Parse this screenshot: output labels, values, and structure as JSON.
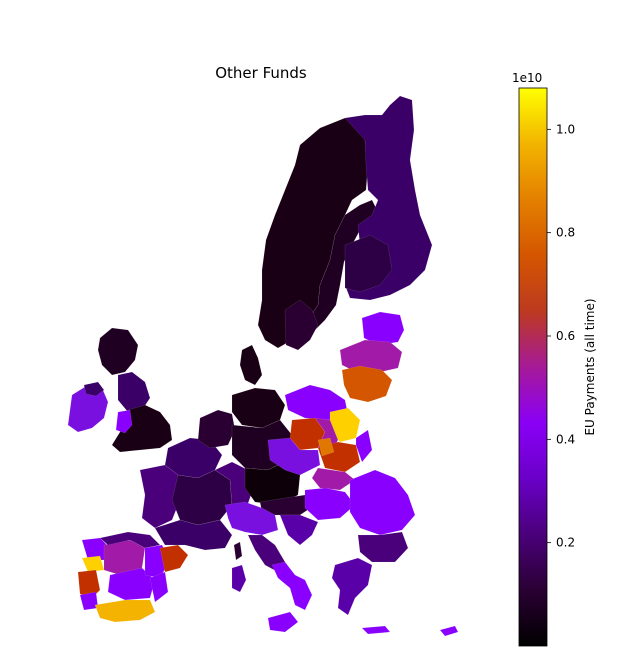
{
  "map": {
    "title": "Other Funds",
    "colormap": "gnuplot",
    "colors": {
      "black": "#000000",
      "dark_purple": "#2a0033",
      "purple": "#6a00c8",
      "violet": "#8a00ff",
      "magenta": "#a21aa8",
      "red": "#c23000",
      "orange": "#e07800",
      "gold": "#f3b300",
      "yellow": "#ffff00"
    }
  },
  "colorbar": {
    "label": "EU Payments (all time)",
    "exponent": "1e10",
    "ticks": [
      "0.2",
      "0.4",
      "0.6",
      "0.8",
      "1.0"
    ],
    "min": 0,
    "max": 1.08
  }
}
